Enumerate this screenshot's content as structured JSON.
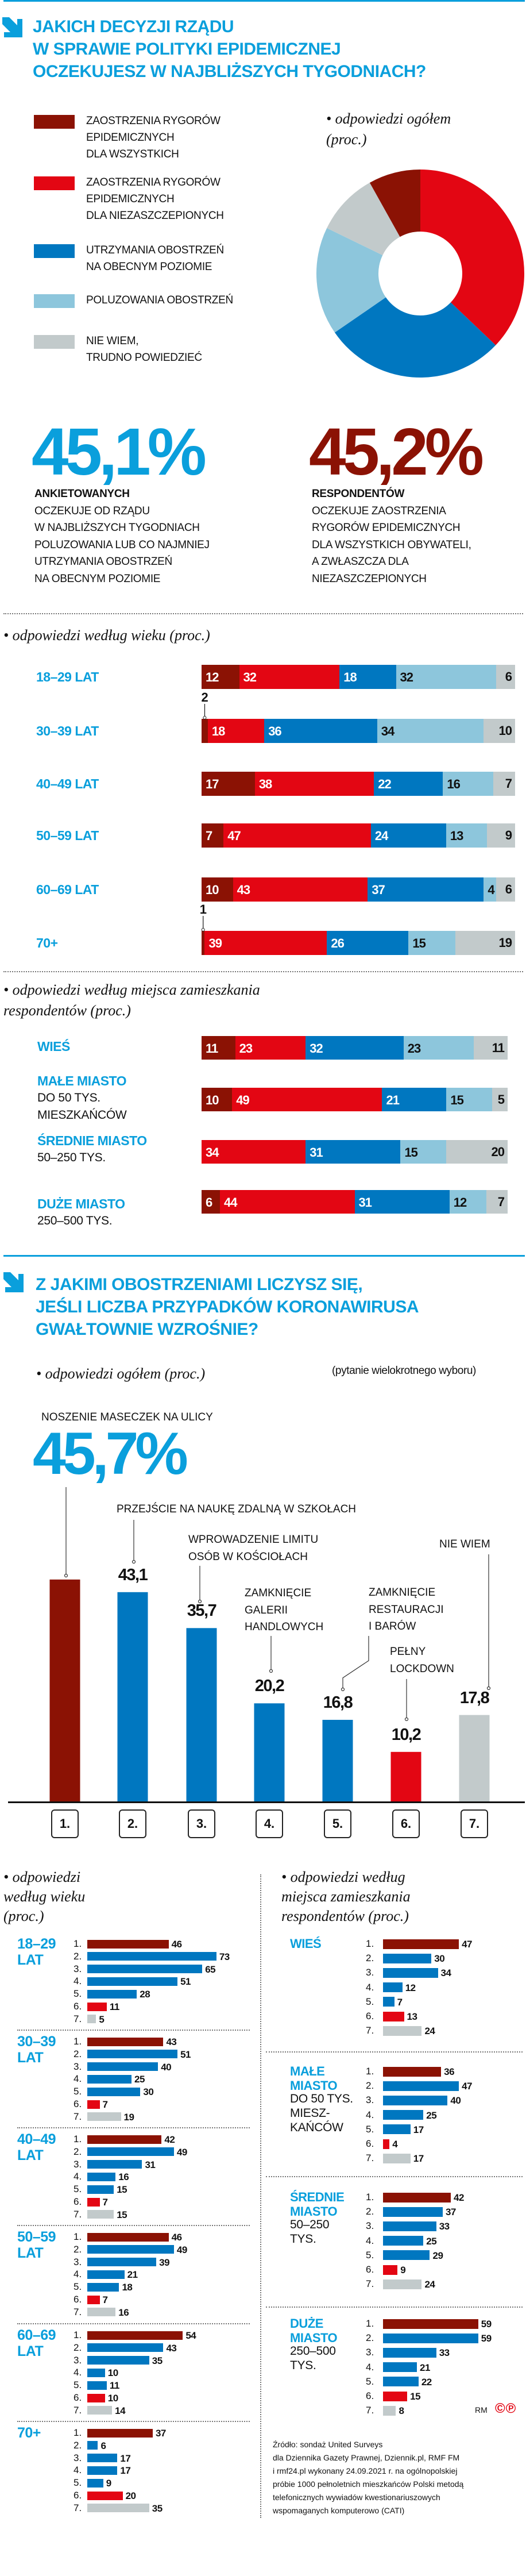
{
  "colors": {
    "title_blue": "#0a9fdc",
    "dark_red": "#8b1204",
    "red": "#e30613",
    "blue": "#0077c0",
    "light_blue": "#8dc6dc",
    "gray": "#c2cacb"
  },
  "q1": {
    "title_lines": [
      "JAKICH DECYZJI RZĄDU",
      "W SPRAWIE POLITYKI EPIDEMICZNEJ",
      "OCZEKUJESZ W NAJBLIŻSZYCH TYGODNIACH?"
    ],
    "stats": [
      {
        "value": "45,1%",
        "bold": "ANKIETOWANYCH",
        "lines": [
          "OCZEKUJE OD RZĄDU",
          "W NAJBLIŻSZYCH TYGODNIACH",
          "POLUZOWANIA LUB CO NAJMNIEJ",
          "UTRZYMANIA OBOSTRZEŃ",
          "NA OBECNYM POZIOMIE"
        ],
        "color": "#0a9fdc"
      },
      {
        "value": "45,2%",
        "bold": "RESPONDENTÓW",
        "lines": [
          "OCZEKUJE ZAOSTRZENIA",
          "RYGORÓW EPIDEMICZNYCH",
          "DLA WSZYSTKICH OBYWATELI,",
          "A ZWŁASZCZA DLA",
          "NIEZASZCZEPIONYCH"
        ],
        "color": "#8b1204"
      }
    ]
  },
  "q2": {
    "title_lines": [
      "Z JAKIMI OBOSTRZENIAMI LICZYSZ SIĘ,",
      "JEŚLI LICZBA PRZYPADKÓW KORONAWIRUSA",
      "GWAŁTOWNIE WZROŚNIE?"
    ]
  },
  "chart_data": [
    {
      "type": "pie",
      "donut": true,
      "heading_lines": [
        "• odpowiedzi ogółem",
        "(proc.)"
      ],
      "slices": [
        {
          "label_lines": [
            "ZAOSTRZENIA RYGORÓW",
            "EPIDEMICZNYCH",
            "DLA WSZYSTKICH"
          ],
          "value": 8.1,
          "display": "8,1",
          "color": "#8b1204",
          "text_color": "#ffffff"
        },
        {
          "label_lines": [
            "ZAOSTRZENIA RYGORÓW",
            "EPIDEMICZNYCH",
            "DLA NIEZASZCZEPIONYCH"
          ],
          "value": 37.1,
          "display": "37,1",
          "color": "#e30613",
          "text_color": "#ffffff"
        },
        {
          "label_lines": [
            "UTRZYMANIA OBOSTRZEŃ",
            "NA OBECNYM POZIOMIE"
          ],
          "value": 28.3,
          "display": "28,3",
          "color": "#0077c0",
          "text_color": "#ffffff"
        },
        {
          "label_lines": [
            "POLUZOWANIA OBOSTRZEŃ"
          ],
          "value": 16.8,
          "display": "16,8",
          "color": "#8dc6dc",
          "text_color": "#111111"
        },
        {
          "label_lines": [
            "NIE WIEM,",
            "TRUDNO POWIEDZIEĆ"
          ],
          "value": 9.7,
          "display": "9,7",
          "color": "#c2cacb",
          "text_color": "#111111"
        }
      ]
    },
    {
      "type": "bar",
      "orientation": "horizontal",
      "stacked": true,
      "heading": "• odpowiedzi według wieku (proc.)",
      "rows": [
        {
          "label": "18–29 LAT",
          "values": [
            12,
            32,
            18,
            32,
            6
          ]
        },
        {
          "label": "30–39 LAT",
          "values": [
            2,
            18,
            36,
            34,
            10
          ]
        },
        {
          "label": "40–49 LAT",
          "values": [
            17,
            38,
            22,
            16,
            7
          ]
        },
        {
          "label": "50–59 LAT",
          "values": [
            7,
            47,
            24,
            13,
            9
          ]
        },
        {
          "label": "60–69 LAT",
          "values": [
            10,
            43,
            37,
            4,
            6
          ]
        },
        {
          "label": "70+",
          "values": [
            1,
            39,
            26,
            15,
            19
          ]
        }
      ]
    },
    {
      "type": "bar",
      "orientation": "horizontal",
      "stacked": true,
      "heading_lines": [
        "• odpowiedzi według miejsca zamieszkania",
        "respondentów (proc.)"
      ],
      "rows": [
        {
          "label": "WIEŚ",
          "sub_lines": [],
          "values": [
            11,
            23,
            32,
            23,
            11
          ]
        },
        {
          "label": "MAŁE MIASTO",
          "sub_lines": [
            "DO 50 TYS.",
            "MIESZKAŃCÓW"
          ],
          "values": [
            10,
            49,
            21,
            15,
            5
          ]
        },
        {
          "label": "ŚREDNIE MIASTO",
          "sub_lines": [
            "50–250 TYS."
          ],
          "values": [
            0,
            34,
            31,
            15,
            20
          ]
        },
        {
          "label": "DUŻE MIASTO",
          "sub_lines": [
            "250–500 TYS."
          ],
          "values": [
            6,
            44,
            31,
            12,
            7
          ]
        }
      ]
    },
    {
      "type": "bar",
      "orientation": "vertical",
      "heading": "• odpowiedzi ogółem (proc.)",
      "note": "(pytanie wielokrotnego wyboru)",
      "categories": [
        "1.",
        "2.",
        "3.",
        "4.",
        "5.",
        "6.",
        "7."
      ],
      "values": [
        45.7,
        43.1,
        35.7,
        20.2,
        16.8,
        10.2,
        17.8
      ],
      "display": [
        "45,7%",
        "43,1",
        "35,7",
        "20,2",
        "16,8",
        "10,2",
        "17,8"
      ],
      "labels": [
        [
          "NOSZENIE MASECZEK NA ULICY"
        ],
        [
          "PRZEJŚCIE NA NAUKĘ ZDALNĄ W SZKOŁACH"
        ],
        [
          "WPROWADZENIE LIMITU",
          "OSÓB W KOŚCIOŁACH"
        ],
        [
          "ZAMKNIĘCIE",
          "GALERII",
          "HANDLOWYCH"
        ],
        [
          "ZAMKNIĘCIE",
          "RESTAURACJI",
          "I BARÓW"
        ],
        [
          "PEŁNY",
          "LOCKDOWN"
        ],
        [
          "NIE WIEM"
        ]
      ],
      "colors": [
        "#8b1204",
        "#0077c0",
        "#0077c0",
        "#0077c0",
        "#0077c0",
        "#e30613",
        "#c2cacb"
      ]
    },
    {
      "type": "bar",
      "orientation": "horizontal",
      "heading_lines": [
        "• odpowiedzi",
        "według wieku",
        "(proc.)"
      ],
      "groups": [
        {
          "label_lines": [
            "18–29",
            "LAT"
          ],
          "values": [
            46,
            73,
            65,
            51,
            28,
            11,
            5
          ]
        },
        {
          "label_lines": [
            "30–39",
            "LAT"
          ],
          "values": [
            43,
            51,
            40,
            25,
            30,
            7,
            19
          ]
        },
        {
          "label_lines": [
            "40–49",
            "LAT"
          ],
          "values": [
            42,
            49,
            31,
            16,
            15,
            7,
            15
          ]
        },
        {
          "label_lines": [
            "50–59",
            "LAT"
          ],
          "values": [
            46,
            49,
            39,
            21,
            18,
            7,
            16
          ]
        },
        {
          "label_lines": [
            "60–69",
            "LAT"
          ],
          "values": [
            54,
            43,
            35,
            10,
            11,
            10,
            14
          ]
        },
        {
          "label_lines": [
            "70+"
          ],
          "values": [
            37,
            6,
            17,
            17,
            9,
            20,
            35
          ]
        }
      ]
    },
    {
      "type": "bar",
      "orientation": "horizontal",
      "heading_lines": [
        "• odpowiedzi według",
        "miejsca zamieszkania",
        "respondentów (proc.)"
      ],
      "groups": [
        {
          "label_lines": [
            "WIEŚ"
          ],
          "sub_lines": [],
          "values": [
            47,
            30,
            34,
            12,
            7,
            13,
            24
          ]
        },
        {
          "label_lines": [
            "MAŁE",
            "MIASTO"
          ],
          "sub_lines": [
            "DO 50 TYS.",
            "MIESZ-",
            "KAŃCÓW"
          ],
          "values": [
            36,
            47,
            40,
            25,
            17,
            4,
            17
          ]
        },
        {
          "label_lines": [
            "ŚREDNIE",
            "MIASTO"
          ],
          "sub_lines": [
            "50–250",
            "TYS."
          ],
          "values": [
            42,
            37,
            33,
            25,
            29,
            9,
            24
          ]
        },
        {
          "label_lines": [
            "DUŻE",
            "MIASTO"
          ],
          "sub_lines": [
            "250–500",
            "TYS."
          ],
          "values": [
            59,
            59,
            33,
            21,
            22,
            15,
            8
          ]
        }
      ]
    }
  ],
  "footer": {
    "credit": "RM",
    "logo_text": "©℗",
    "source_lines": [
      "Źródło: sondaż United Surveys",
      "dla Dziennika Gazety Prawnej, Dziennik.pl, RMF FM",
      "i rmf24.pl wykonany 24.09.2021 r. na ogólnopolskiej",
      "próbie 1000 pełnoletnich mieszkańców Polski metodą",
      "telefonicznych wywiadów kwestionariuszowych",
      "wspomaganych komputerowo (CATI)"
    ]
  }
}
